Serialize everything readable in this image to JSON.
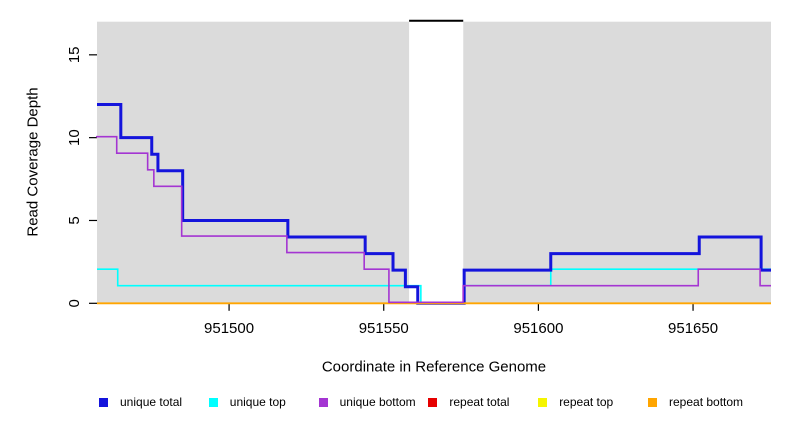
{
  "chart_data": {
    "type": "line",
    "subtype": "step",
    "title": "",
    "xlabel": "Coordinate in Reference Genome",
    "ylabel": "Read Coverage Depth",
    "xlim": [
      951457.3,
      951675.2
    ],
    "ylim": [
      0,
      17
    ],
    "x_ticks": [
      951500,
      951550,
      951600,
      951650
    ],
    "x_tick_labels": [
      "951500",
      "951550",
      "951600",
      "951650"
    ],
    "y_ticks": [
      0,
      5,
      10,
      15
    ],
    "y_tick_labels": [
      "0",
      "5",
      "10",
      "15"
    ],
    "grid": false,
    "panel_bg": "#DBDBDB",
    "gap_region": {
      "from": 951558.2,
      "to": 951575.7,
      "fill": "#FFFFFF",
      "top_bar_color": "#000000"
    },
    "series": [
      {
        "name": "repeat total",
        "color": "#E60000",
        "width": 1.5,
        "segments": [
          [
            951457.3,
            0
          ]
        ]
      },
      {
        "name": "repeat top",
        "color": "#F5F500",
        "width": 1.5,
        "segments": [
          [
            951457.3,
            0
          ]
        ]
      },
      {
        "name": "unique top",
        "color": "#00FFFF",
        "width": 1.6,
        "segments": [
          [
            951457.3,
            2
          ],
          [
            951464,
            1
          ],
          [
            951562,
            0
          ],
          [
            951576,
            1
          ],
          [
            951604,
            2
          ]
        ]
      },
      {
        "name": "unique total",
        "color": "#1414DC",
        "width": 3,
        "segments": [
          [
            951457.3,
            12
          ],
          [
            951465,
            10
          ],
          [
            951475,
            9
          ],
          [
            951477,
            8
          ],
          [
            951485,
            5
          ],
          [
            951519,
            4
          ],
          [
            951544,
            3
          ],
          [
            951553,
            2
          ],
          [
            951557,
            1
          ],
          [
            951561,
            0
          ],
          [
            951576,
            2
          ],
          [
            951604,
            3
          ],
          [
            951652,
            4
          ],
          [
            951672,
            2
          ]
        ]
      },
      {
        "name": "repeat bottom",
        "color": "#FFA500",
        "width": 1.8,
        "segments": [
          [
            951457.3,
            0
          ]
        ]
      },
      {
        "name": "unique bottom",
        "color": "#A435D2",
        "width": 1.6,
        "segments": [
          [
            951457.3,
            10
          ],
          [
            951464,
            9
          ],
          [
            951474,
            8
          ],
          [
            951476,
            7
          ],
          [
            951485,
            4
          ],
          [
            951519,
            3
          ],
          [
            951544,
            2
          ],
          [
            951552,
            0
          ],
          [
            951576,
            1
          ],
          [
            951652,
            2
          ],
          [
            951672,
            1
          ]
        ]
      }
    ],
    "legend": [
      {
        "label": "unique total",
        "color": "#1414DC"
      },
      {
        "label": "unique top",
        "color": "#00FFFF"
      },
      {
        "label": "unique bottom",
        "color": "#A435D2"
      },
      {
        "label": "repeat total",
        "color": "#E60000"
      },
      {
        "label": "repeat top",
        "color": "#F5F500"
      },
      {
        "label": "repeat bottom",
        "color": "#FFA500"
      }
    ]
  }
}
